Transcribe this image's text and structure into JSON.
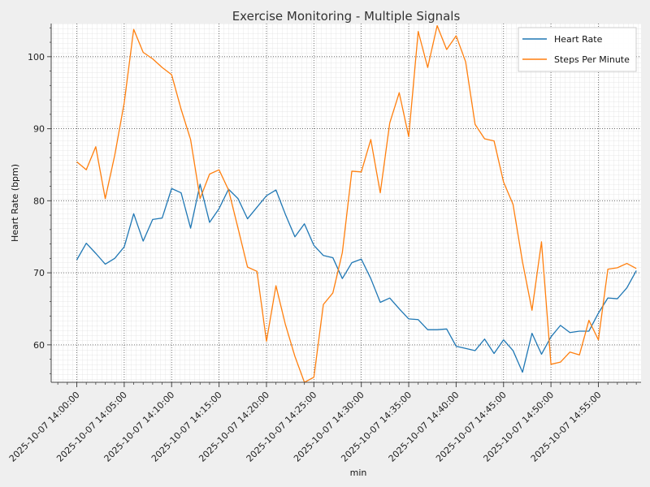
{
  "chart_data": {
    "type": "line",
    "title": "Exercise Monitoring - Multiple Signals",
    "xlabel": "min",
    "ylabel": "Heart Rate (bpm)",
    "x_start": "2025-10-07 14:00:00",
    "x_step_minutes": 1,
    "x_range_minutes": [
      -2.7,
      59.5
    ],
    "ylim": [
      54.8,
      104.6
    ],
    "y_ticks": [
      60,
      70,
      80,
      90,
      100
    ],
    "x_ticks": [
      {
        "minute": 0,
        "label": "2025-10-07 14:00:00"
      },
      {
        "minute": 5,
        "label": "2025-10-07 14:05:00"
      },
      {
        "minute": 10,
        "label": "2025-10-07 14:10:00"
      },
      {
        "minute": 15,
        "label": "2025-10-07 14:15:00"
      },
      {
        "minute": 20,
        "label": "2025-10-07 14:20:00"
      },
      {
        "minute": 25,
        "label": "2025-10-07 14:25:00"
      },
      {
        "minute": 30,
        "label": "2025-10-07 14:30:00"
      },
      {
        "minute": 35,
        "label": "2025-10-07 14:35:00"
      },
      {
        "minute": 40,
        "label": "2025-10-07 14:40:00"
      },
      {
        "minute": 45,
        "label": "2025-10-07 14:45:00"
      },
      {
        "minute": 50,
        "label": "2025-10-07 14:50:00"
      },
      {
        "minute": 55,
        "label": "2025-10-07 14:55:00"
      }
    ],
    "grid": true,
    "legend_position": "top-right",
    "series": [
      {
        "name": "Heart Rate",
        "color": "#1f77b4",
        "values": [
          71.8,
          74.1,
          72.7,
          71.2,
          72.0,
          73.6,
          78.2,
          74.4,
          77.4,
          77.6,
          81.7,
          81.1,
          76.2,
          82.3,
          77.0,
          78.9,
          81.6,
          80.3,
          77.5,
          79.1,
          80.7,
          81.5,
          78.1,
          75.0,
          76.8,
          73.8,
          72.4,
          72.1,
          69.2,
          71.4,
          71.9,
          69.2,
          65.9,
          66.5,
          65.0,
          63.6,
          63.5,
          62.1,
          62.1,
          62.2,
          59.8,
          59.5,
          59.2,
          60.8,
          58.8,
          60.7,
          59.2,
          56.2,
          61.6,
          58.7,
          61.1,
          62.7,
          61.7,
          61.9,
          61.9,
          64.4,
          66.5,
          66.4,
          67.9,
          70.3
        ]
      },
      {
        "name": "Steps Per Minute",
        "color": "#ff7f0e",
        "values": [
          85.4,
          84.3,
          87.5,
          80.3,
          86.3,
          93.6,
          103.8,
          100.6,
          99.7,
          98.5,
          97.5,
          92.7,
          88.5,
          80.3,
          83.7,
          84.3,
          81.5,
          76.2,
          70.8,
          70.2,
          60.5,
          68.2,
          62.8,
          58.4,
          54.8,
          55.5,
          65.6,
          67.2,
          72.8,
          84.1,
          84.0,
          88.5,
          81.1,
          90.8,
          95.0,
          88.9,
          103.5,
          98.5,
          104.3,
          101.0,
          102.9,
          99.3,
          90.6,
          88.6,
          88.3,
          82.6,
          79.5,
          71.5,
          64.8,
          74.3,
          57.3,
          57.6,
          59.0,
          58.6,
          63.4,
          60.7,
          70.5,
          70.7,
          71.3,
          70.6
        ]
      }
    ]
  }
}
